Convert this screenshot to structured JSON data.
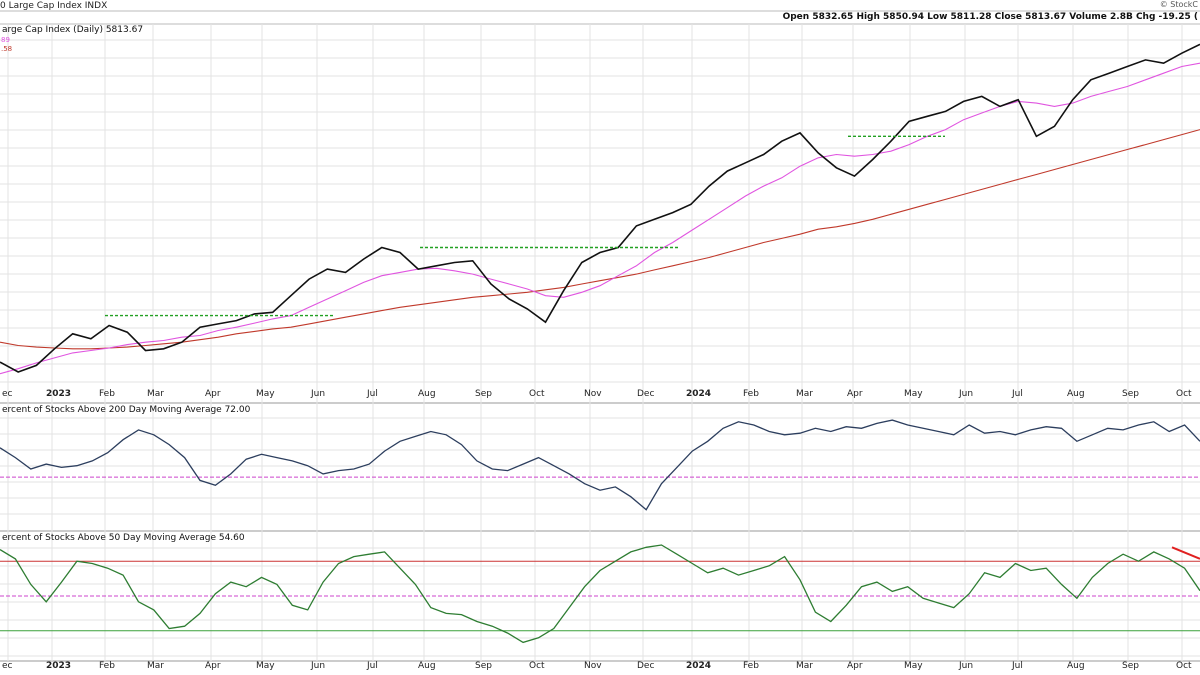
{
  "header": {
    "title": "0 Large Cap Index  INDX",
    "brand": "© StockC",
    "ohlc": "Open 5832.65  High 5850.94  Low 5811.28  Close 5813.67  Volume 2.8B  Chg -19.25 ("
  },
  "panels": {
    "price": {
      "label": "arge Cap Index (Daily) 5813.67",
      "legend_pink": "89",
      "legend_red": ".58"
    },
    "breadth200": {
      "label": "ercent of Stocks Above 200 Day Moving Average 72.00"
    },
    "breadth50": {
      "label": "ercent of Stocks Above 50 Day Moving Average 54.60"
    }
  },
  "colors": {
    "price": "#111111",
    "ma50": "#e055e0",
    "ma200": "#c0392b",
    "resistance": "#22a022",
    "breadth200": "#2c3e5e",
    "breadth50": "#2e7d32",
    "grid": "#e3e3e3",
    "refPink": "#cc44cc",
    "refRed": "#cc3333",
    "refGreen": "#3aa03a",
    "trend": "#e02020"
  },
  "chart_data": [
    {
      "type": "line",
      "title": "arge Cap Index (Daily) 5813.67",
      "x_labels": [
        "ec",
        "2023",
        "Feb",
        "Mar",
        "Apr",
        "May",
        "Jun",
        "Jul",
        "Aug",
        "Sep",
        "Oct",
        "Nov",
        "Dec",
        "2024",
        "Feb",
        "Mar",
        "Apr",
        "May",
        "Jun",
        "Jul",
        "Aug",
        "Sep",
        "Oct"
      ],
      "series": [
        {
          "role": "price",
          "values": [
            3900,
            3840,
            3880,
            3980,
            4070,
            4040,
            4120,
            4080,
            3970,
            3980,
            4020,
            4110,
            4130,
            4150,
            4190,
            4200,
            4300,
            4400,
            4460,
            4440,
            4520,
            4590,
            4560,
            4460,
            4480,
            4500,
            4510,
            4370,
            4280,
            4220,
            4140,
            4330,
            4500,
            4560,
            4590,
            4720,
            4760,
            4800,
            4850,
            4960,
            5050,
            5100,
            5150,
            5230,
            5280,
            5160,
            5070,
            5020,
            5120,
            5230,
            5350,
            5380,
            5410,
            5470,
            5500,
            5440,
            5480,
            5260,
            5320,
            5480,
            5600,
            5640,
            5680,
            5720,
            5700,
            5760,
            5813.67
          ]
        },
        {
          "role": "ma50",
          "values": [
            3830,
            3860,
            3895,
            3925,
            3955,
            3970,
            3985,
            4005,
            4020,
            4030,
            4050,
            4060,
            4090,
            4110,
            4135,
            4160,
            4180,
            4230,
            4280,
            4330,
            4380,
            4420,
            4440,
            4460,
            4465,
            4450,
            4430,
            4400,
            4370,
            4340,
            4300,
            4290,
            4320,
            4360,
            4420,
            4480,
            4560,
            4620,
            4690,
            4760,
            4830,
            4900,
            4960,
            5010,
            5080,
            5130,
            5150,
            5140,
            5150,
            5170,
            5210,
            5260,
            5300,
            5360,
            5400,
            5440,
            5470,
            5460,
            5440,
            5460,
            5500,
            5530,
            5560,
            5600,
            5640,
            5680,
            5700
          ]
        },
        {
          "role": "ma200",
          "values": [
            4020,
            4000,
            3990,
            3985,
            3980,
            3980,
            3985,
            3990,
            4000,
            4010,
            4020,
            4035,
            4050,
            4070,
            4085,
            4100,
            4110,
            4130,
            4150,
            4170,
            4190,
            4210,
            4230,
            4245,
            4260,
            4275,
            4290,
            4300,
            4310,
            4320,
            4335,
            4350,
            4370,
            4390,
            4410,
            4430,
            4455,
            4480,
            4505,
            4530,
            4560,
            4590,
            4620,
            4645,
            4670,
            4700,
            4715,
            4735,
            4760,
            4790,
            4820,
            4850,
            4880,
            4910,
            4940,
            4970,
            5000,
            5030,
            5060,
            5090,
            5120,
            5150,
            5180,
            5210,
            5240,
            5270,
            5300
          ]
        }
      ],
      "annotations": [
        {
          "type": "resistance",
          "y": 4180
        },
        {
          "type": "resistance",
          "y": 4590
        },
        {
          "type": "resistance",
          "y": 5260
        }
      ]
    },
    {
      "type": "line",
      "title": "ercent of Stocks Above 200 Day Moving Average 72.00",
      "reference_lines": [
        50
      ],
      "ylim": [
        20,
        90
      ],
      "series": [
        {
          "role": "breadth200",
          "values": [
            68,
            62,
            55,
            58,
            56,
            57,
            60,
            65,
            73,
            79,
            76,
            70,
            62,
            48,
            45,
            52,
            61,
            64,
            62,
            60,
            57,
            52,
            54,
            55,
            58,
            66,
            72,
            75,
            78,
            76,
            70,
            60,
            55,
            54,
            58,
            62,
            57,
            52,
            46,
            42,
            44,
            38,
            30,
            46,
            56,
            66,
            72,
            80,
            84,
            82,
            78,
            76,
            77,
            80,
            78,
            81,
            80,
            83,
            85,
            82,
            80,
            78,
            76,
            82,
            77,
            78,
            76,
            79,
            81,
            80,
            72,
            76,
            80,
            79,
            82,
            84,
            78,
            82,
            72.0
          ]
        }
      ]
    },
    {
      "type": "line",
      "title": "ercent of Stocks Above 50 Day Moving Average 54.60",
      "reference_lines": [
        80,
        50,
        20
      ],
      "ylim": [
        0,
        100
      ],
      "series": [
        {
          "role": "breadth50",
          "values": [
            90,
            82,
            60,
            45,
            62,
            80,
            78,
            74,
            68,
            45,
            38,
            22,
            24,
            35,
            52,
            62,
            58,
            66,
            60,
            42,
            38,
            62,
            78,
            84,
            86,
            88,
            74,
            60,
            40,
            35,
            34,
            28,
            24,
            18,
            10,
            14,
            22,
            40,
            58,
            72,
            80,
            88,
            92,
            94,
            86,
            78,
            70,
            74,
            68,
            72,
            76,
            84,
            64,
            36,
            28,
            42,
            58,
            62,
            54,
            58,
            48,
            44,
            40,
            52,
            70,
            66,
            78,
            72,
            74,
            60,
            48,
            66,
            78,
            86,
            80,
            88,
            82,
            74,
            54.6
          ]
        }
      ],
      "annotations": [
        {
          "type": "trendline",
          "from": 92,
          "to": 82
        }
      ]
    }
  ]
}
